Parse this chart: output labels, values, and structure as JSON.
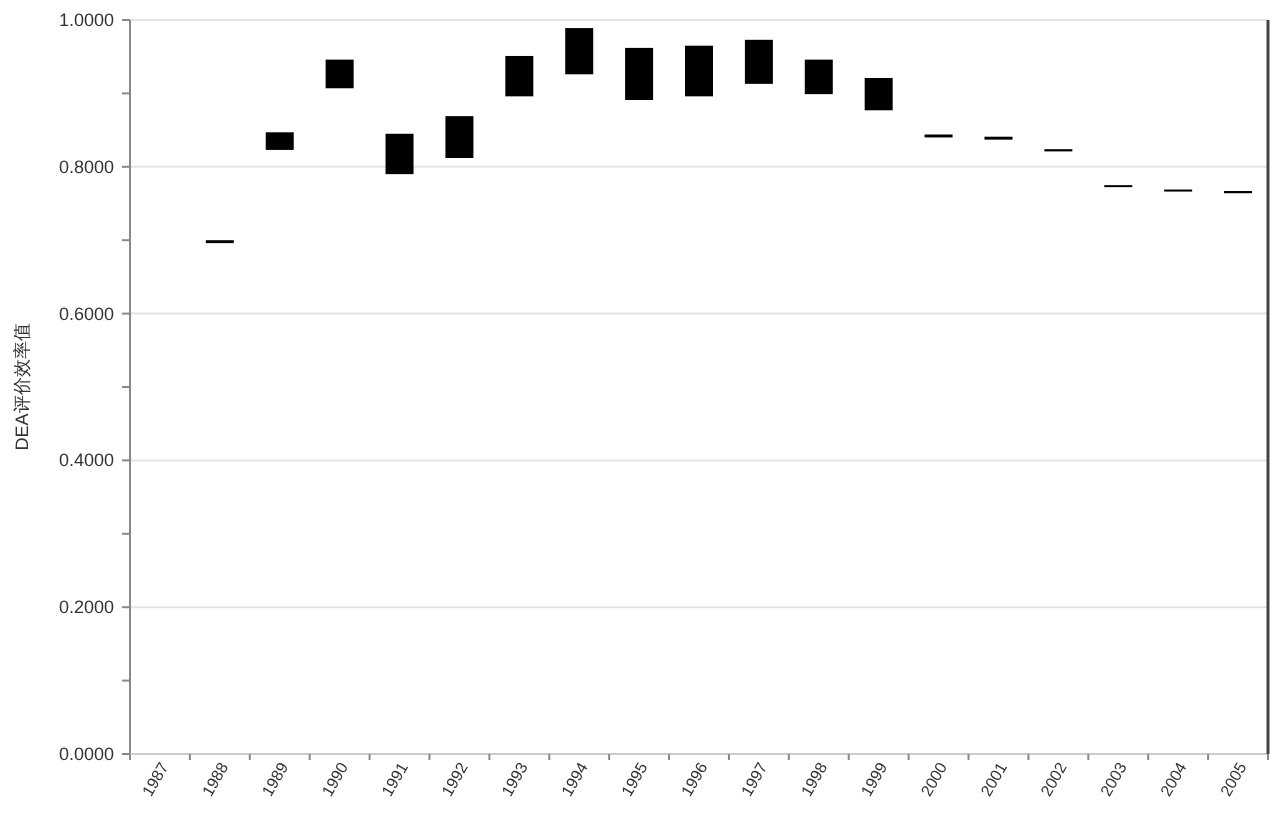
{
  "chart_data": {
    "type": "bar",
    "ylabel": "DEA评价效率值",
    "categories": [
      "1987",
      "1988",
      "1989",
      "1990",
      "1991",
      "1992",
      "1993",
      "1994",
      "1995",
      "1996",
      "1997",
      "1998",
      "1999",
      "2000",
      "2001",
      "2002",
      "2003",
      "2004",
      "2005"
    ],
    "series": [
      {
        "color": "#000000",
        "base": [
          null,
          0.696,
          0.823,
          0.907,
          0.79,
          0.812,
          0.896,
          0.926,
          0.891,
          0.896,
          0.913,
          0.899,
          0.877,
          0.84,
          0.837,
          0.821,
          0.773,
          0.767,
          0.764
        ],
        "values": [
          null,
          0.004,
          0.024,
          0.039,
          0.055,
          0.057,
          0.055,
          0.063,
          0.071,
          0.069,
          0.06,
          0.047,
          0.044,
          0.004,
          0.004,
          0.003,
          0.002,
          0.002,
          0.003
        ]
      }
    ],
    "ylim": [
      0,
      1
    ],
    "yticks": [
      {
        "value": 0,
        "label": "0.0000"
      },
      {
        "value": 0.1,
        "label": null
      },
      {
        "value": 0.2,
        "label": "0.2000"
      },
      {
        "value": 0.3,
        "label": null
      },
      {
        "value": 0.4,
        "label": "0.4000"
      },
      {
        "value": 0.5,
        "label": null
      },
      {
        "value": 0.6,
        "label": "0.6000"
      },
      {
        "value": 0.7,
        "label": null
      },
      {
        "value": 0.8,
        "label": "0.8000"
      },
      {
        "value": 0.9,
        "label": null
      },
      {
        "value": 1,
        "label": "1.0000"
      }
    ],
    "grid": "y"
  }
}
